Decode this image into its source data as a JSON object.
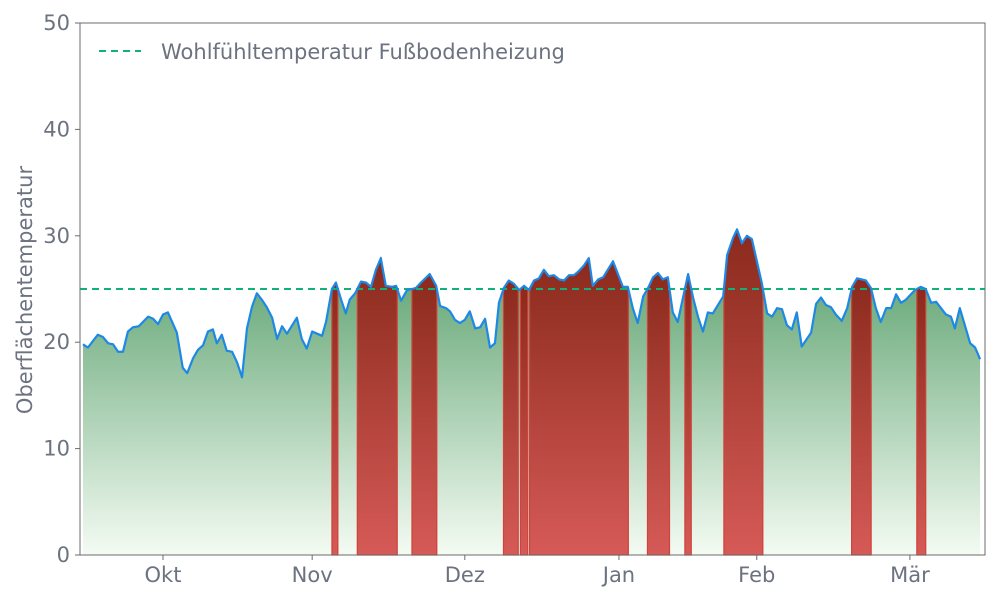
{
  "chart_data": {
    "type": "area",
    "title": "",
    "xlabel": "",
    "ylabel": "Oberflächentemperatur",
    "ylim": [
      0,
      50
    ],
    "xlim_days": [
      -0.6,
      182.6
    ],
    "yticks": [
      0,
      10,
      20,
      30,
      40,
      50
    ],
    "xticks": [
      {
        "label": "Okt",
        "day": 16.2
      },
      {
        "label": "Nov",
        "day": 46.4
      },
      {
        "label": "Dez",
        "day": 77.3
      },
      {
        "label": "Jan",
        "day": 108.5
      },
      {
        "label": "Feb",
        "day": 136.4
      },
      {
        "label": "Mär",
        "day": 167.4
      }
    ],
    "threshold": {
      "value": 25,
      "label": "Wohlfühltemperatur Fußbodenheizung",
      "color": "#10b27a"
    },
    "legend_position": "top-left",
    "grid": false,
    "colors": {
      "line": "#1e88e5",
      "below_top": "#4f9a63",
      "below_bottom": "#f4fbf3",
      "above_top": "#8a2a1c",
      "above_bottom": "#d65a57",
      "above_edge": "#d0423a"
    },
    "series": [
      {
        "name": "Oberflächentemperatur",
        "x": [
          0,
          1.0,
          3.0,
          4.0,
          5.1,
          6.1,
          7.1,
          8.1,
          9.1,
          10.1,
          11.3,
          13.2,
          14.2,
          15.2,
          16.2,
          17.2,
          19.0,
          20.2,
          21.1,
          22.3,
          23.3,
          24.3,
          25.3,
          26.3,
          27.1,
          28.1,
          29.1,
          30.2,
          31.2,
          32.2,
          33.2,
          34.2,
          35.2,
          36.2,
          37.2,
          38.3,
          39.3,
          40.3,
          41.3,
          43.3,
          44.3,
          45.3,
          46.4,
          48.4,
          49.2,
          50.4,
          51.2,
          52.4,
          53.2,
          54.0,
          55.1,
          56.3,
          57.3,
          58.3,
          59.3,
          60.3,
          61.3,
          62.6,
          63.4,
          64.4,
          65.6,
          66.6,
          67.4,
          68.4,
          70.2,
          71.5,
          72.3,
          73.5,
          74.3,
          75.3,
          76.3,
          77.3,
          78.3,
          79.4,
          80.4,
          81.4,
          82.4,
          83.4,
          84.2,
          85.2,
          86.2,
          87.2,
          88.3,
          89.3,
          90.3,
          91.3,
          92.3,
          93.3,
          94.3,
          95.3,
          96.4,
          97.4,
          98.4,
          99.4,
          100.4,
          101.4,
          102.4,
          103.2,
          104.3,
          105.3,
          107.3,
          109.3,
          110.3,
          111.3,
          112.3,
          113.4,
          114.4,
          115.4,
          116.4,
          117.4,
          118.4,
          119.4,
          120.4,
          122.5,
          123.5,
          124.5,
          125.5,
          126.5,
          127.5,
          129.6,
          130.4,
          131.6,
          132.4,
          133.4,
          134.4,
          135.4,
          137.4,
          138.5,
          139.5,
          140.5,
          141.5,
          142.5,
          143.5,
          144.5,
          145.5,
          147.4,
          148.4,
          149.4,
          150.4,
          151.4,
          152.4,
          153.6,
          154.7,
          155.7,
          156.7,
          158.5,
          159.5,
          160.5,
          161.5,
          162.6,
          163.6,
          164.6,
          165.6,
          166.6,
          168.4,
          169.6,
          170.6,
          171.7,
          172.7,
          174.7,
          175.7,
          176.5,
          177.5,
          179.6,
          180.6,
          181.6
        ],
        "values": [
          19.8,
          19.5,
          20.7,
          20.5,
          19.9,
          19.8,
          19.1,
          19.1,
          21.0,
          21.4,
          21.5,
          22.4,
          22.2,
          21.7,
          22.6,
          22.8,
          20.9,
          17.6,
          17.1,
          18.5,
          19.3,
          19.7,
          21.0,
          21.2,
          19.9,
          20.7,
          19.2,
          19.1,
          18.1,
          16.7,
          21.3,
          23.3,
          24.6,
          24.0,
          23.3,
          22.3,
          20.3,
          21.5,
          20.8,
          22.3,
          20.3,
          19.4,
          21.0,
          20.6,
          21.9,
          25.0,
          25.6,
          23.8,
          22.7,
          24.0,
          24.6,
          25.7,
          25.6,
          25.2,
          26.8,
          27.9,
          25.3,
          25.2,
          25.3,
          23.9,
          24.9,
          25.0,
          25.1,
          25.6,
          26.4,
          25.3,
          23.4,
          23.2,
          22.9,
          22.1,
          21.8,
          22.1,
          22.9,
          21.3,
          21.4,
          22.2,
          19.5,
          19.9,
          23.7,
          25.1,
          25.8,
          25.5,
          24.9,
          25.3,
          24.9,
          25.8,
          26.0,
          26.8,
          26.2,
          26.3,
          25.9,
          25.8,
          26.3,
          26.3,
          26.7,
          27.2,
          27.9,
          25.3,
          25.9,
          26.1,
          27.6,
          25.2,
          25.2,
          23.2,
          21.8,
          24.3,
          25.1,
          26.1,
          26.5,
          25.9,
          26.1,
          22.8,
          21.9,
          26.4,
          24.2,
          22.4,
          21.0,
          22.8,
          22.7,
          24.3,
          28.2,
          29.8,
          30.6,
          29.3,
          30.0,
          29.7,
          25.6,
          22.7,
          22.4,
          23.2,
          23.1,
          21.6,
          21.2,
          22.8,
          19.6,
          20.9,
          23.6,
          24.2,
          23.5,
          23.3,
          22.6,
          22.0,
          23.2,
          25.2,
          26.0,
          25.8,
          25.1,
          23.2,
          21.9,
          23.2,
          23.2,
          24.5,
          23.7,
          24.0,
          24.9,
          25.2,
          25.0,
          23.7,
          23.8,
          22.6,
          22.4,
          21.3,
          23.2,
          19.9,
          19.5,
          18.4
        ]
      }
    ]
  }
}
